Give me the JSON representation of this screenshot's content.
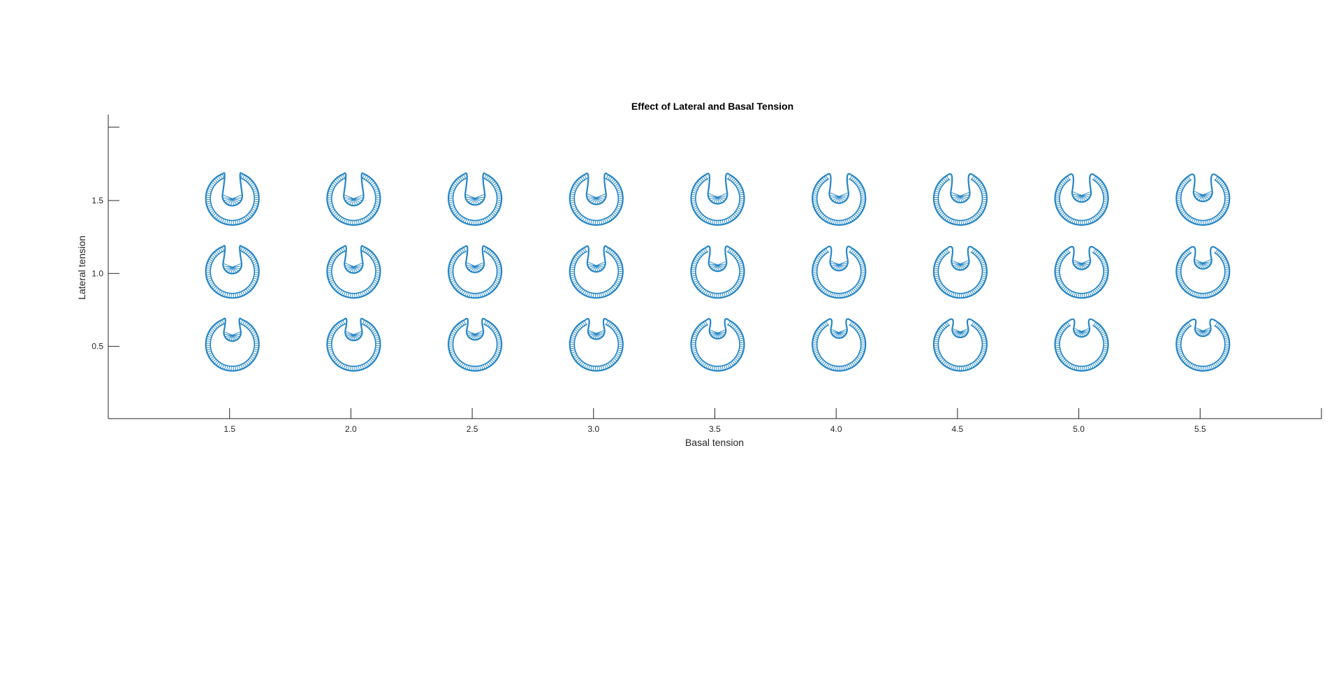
{
  "chart_data": {
    "type": "scatter",
    "title": "Effect of Lateral and Basal Tension",
    "xlabel": "Basal tension",
    "ylabel": "Lateral tension",
    "xlim": [
      1.0,
      6.0
    ],
    "ylim": [
      0.0,
      2.0
    ],
    "x_ticks": [
      "1.5",
      "2.0",
      "2.5",
      "3.0",
      "3.5",
      "4.0",
      "4.5",
      "5.0",
      "5.5"
    ],
    "y_ticks": [
      "0.5",
      "1.0",
      "1.5"
    ],
    "grid": false,
    "marker": "simulated epithelial ring shape (invagination) at each parameter pair",
    "marker_color": "#0072BD",
    "basal_tension": [
      1.5,
      2.0,
      2.5,
      3.0,
      3.5,
      4.0,
      4.5,
      5.0,
      5.5
    ],
    "lateral_tension": [
      0.5,
      1.0,
      1.5
    ]
  }
}
